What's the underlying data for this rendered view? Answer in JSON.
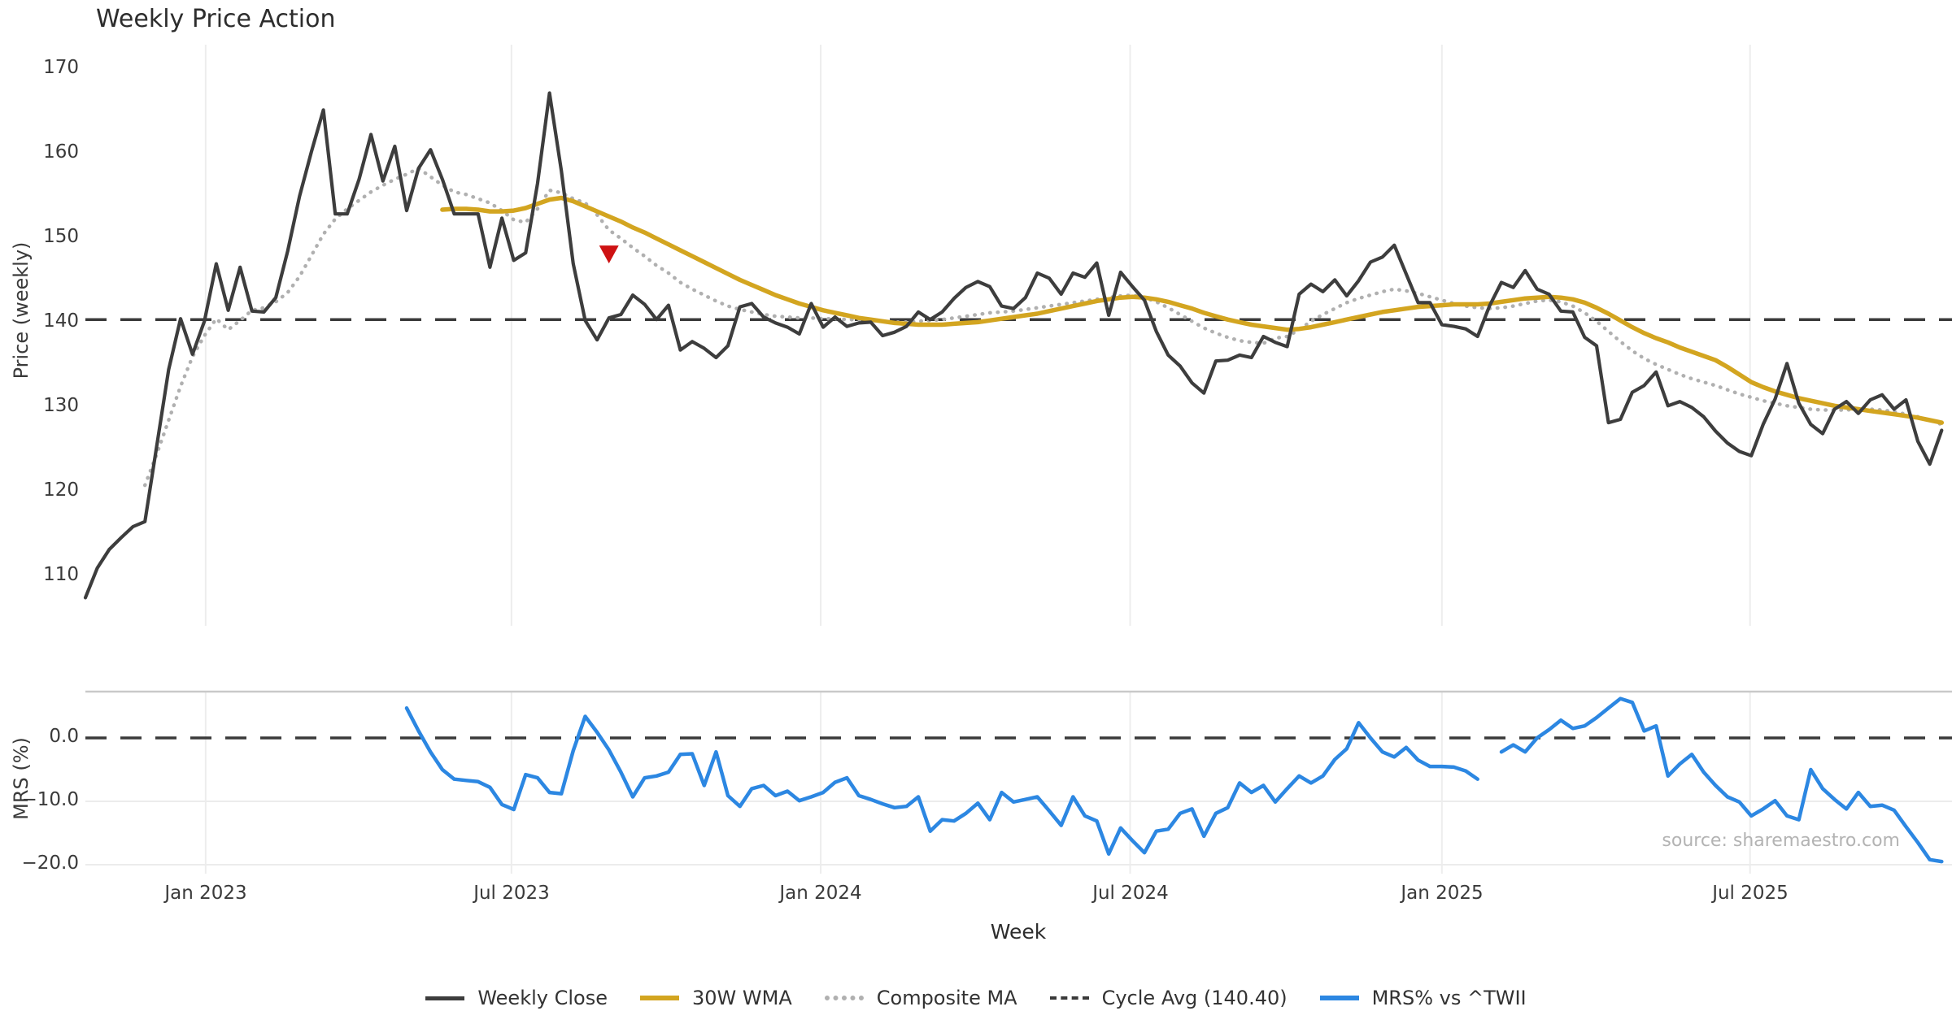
{
  "title": "Weekly Price Action",
  "source_note": "source: sharemaestro.com",
  "legend": {
    "items": [
      {
        "label": "Weekly Close",
        "color": "#3d3d3d",
        "style": "solid"
      },
      {
        "label": "30W WMA",
        "color": "#d3a520",
        "style": "solid"
      },
      {
        "label": "Composite MA",
        "color": "#b0b0b0",
        "style": "dotted"
      },
      {
        "label": "Cycle Avg (140.40)",
        "color": "#3a3a3a",
        "style": "dashed"
      },
      {
        "label": "MRS% vs ^TWII",
        "color": "#2c87e2",
        "style": "solid"
      }
    ]
  },
  "chart_data": [
    {
      "type": "line",
      "panel": "price",
      "title": "Weekly Price Action",
      "ylabel": "Price (weekly)",
      "ylim": [
        104,
        173
      ],
      "yticks": [
        170,
        160,
        150,
        140,
        130,
        120,
        110
      ],
      "grid": "vertical-only",
      "x_axis": {
        "label": "Week",
        "tick_weeks": [
          10.1,
          35.8,
          61.8,
          87.8,
          114.0,
          139.9
        ],
        "tick_labels": [
          "Jan 2023",
          "Jul 2023",
          "Jan 2024",
          "Jul 2024",
          "Jan 2025",
          "Jul 2025"
        ]
      },
      "cycle_avg": 140.4,
      "marker": {
        "name": "sell-signal",
        "shape": "triangle-down",
        "week": 44,
        "price": 148.2,
        "color": "#ce1213"
      },
      "series": [
        {
          "name": "Weekly Close",
          "color": "#3d3d3d",
          "style": "solid",
          "start_week": 0,
          "values": [
            107.5,
            111.0,
            113.2,
            114.6,
            115.9,
            116.5,
            125.5,
            134.5,
            140.5,
            136.3,
            140.2,
            147.0,
            141.5,
            146.6,
            141.4,
            141.3,
            143.0,
            148.5,
            155.0,
            160.3,
            165.2,
            152.9,
            152.9,
            157.0,
            162.3,
            156.8,
            160.9,
            153.3,
            158.3,
            160.5,
            157.0,
            152.9,
            152.9,
            152.9,
            146.6,
            152.4,
            147.4,
            148.3,
            156.5,
            167.2,
            158.0,
            147.0,
            140.3,
            138.0,
            140.6,
            141.0,
            143.3,
            142.2,
            140.4,
            142.1,
            136.8,
            137.8,
            137.0,
            135.9,
            137.3,
            141.9,
            142.3,
            140.7,
            140.0,
            139.5,
            138.7,
            142.3,
            139.5,
            140.7,
            139.6,
            140.0,
            140.1,
            138.5,
            138.9,
            139.6,
            141.3,
            140.4,
            141.3,
            142.9,
            144.2,
            144.9,
            144.3,
            142.0,
            141.7,
            143.0,
            145.9,
            145.3,
            143.4,
            145.9,
            145.4,
            147.1,
            140.9,
            146.0,
            144.3,
            142.7,
            139.0,
            136.2,
            134.9,
            132.9,
            131.7,
            135.5,
            135.6,
            136.2,
            135.9,
            138.4,
            137.7,
            137.2,
            143.4,
            144.6,
            143.7,
            145.1,
            143.2,
            145.0,
            147.2,
            147.8,
            149.2,
            145.8,
            142.4,
            142.4,
            139.8,
            139.6,
            139.3,
            138.4,
            142.0,
            144.8,
            144.2,
            146.2,
            144.0,
            143.4,
            141.4,
            141.3,
            138.3,
            137.3,
            128.2,
            128.6,
            131.8,
            132.6,
            134.2,
            130.2,
            130.7,
            130.0,
            128.9,
            127.2,
            125.8,
            124.8,
            124.3,
            128.0,
            131.0,
            135.2,
            130.5,
            128.0,
            126.9,
            129.8,
            130.7,
            129.3,
            130.9,
            131.5,
            129.8,
            130.9,
            126.0,
            123.3,
            127.3
          ]
        },
        {
          "name": "30W WMA",
          "color": "#d3a520",
          "style": "solid",
          "start_week": 30,
          "values": [
            153.4,
            153.5,
            153.5,
            153.4,
            153.2,
            153.2,
            153.3,
            153.6,
            154.1,
            154.6,
            154.8,
            154.4,
            153.8,
            153.2,
            152.6,
            152.0,
            151.3,
            150.7,
            150.0,
            149.3,
            148.6,
            147.9,
            147.2,
            146.5,
            145.8,
            145.1,
            144.5,
            143.9,
            143.3,
            142.8,
            142.3,
            141.9,
            141.5,
            141.2,
            140.9,
            140.6,
            140.4,
            140.2,
            140.0,
            139.9,
            139.8,
            139.8,
            139.8,
            139.9,
            140.0,
            140.1,
            140.3,
            140.5,
            140.7,
            140.9,
            141.1,
            141.4,
            141.7,
            142.0,
            142.3,
            142.6,
            142.8,
            143.0,
            143.1,
            143.0,
            142.8,
            142.5,
            142.1,
            141.7,
            141.2,
            140.8,
            140.4,
            140.1,
            139.8,
            139.6,
            139.4,
            139.2,
            139.3,
            139.5,
            139.8,
            140.1,
            140.4,
            140.7,
            141.0,
            141.3,
            141.5,
            141.7,
            141.9,
            142.0,
            142.1,
            142.2,
            142.2,
            142.2,
            142.3,
            142.5,
            142.7,
            142.9,
            143.0,
            143.1,
            143.0,
            142.8,
            142.4,
            141.8,
            141.1,
            140.3,
            139.5,
            138.8,
            138.2,
            137.7,
            137.1,
            136.6,
            136.1,
            135.6,
            134.8,
            133.9,
            133.0,
            132.4,
            131.9,
            131.5,
            131.1,
            130.8,
            130.5,
            130.2,
            130.0,
            129.8,
            129.6,
            129.4,
            129.2,
            129.0,
            128.8,
            128.5,
            128.2
          ]
        },
        {
          "name": "Composite MA",
          "color": "#b0b0b0",
          "style": "dotted",
          "start_week": 5,
          "values": [
            120.8,
            124.5,
            128.5,
            132.5,
            136.0,
            138.5,
            140.5,
            139.2,
            140.3,
            141.5,
            141.8,
            142.5,
            143.6,
            145.5,
            148.0,
            150.5,
            152.3,
            153.5,
            154.5,
            155.5,
            156.3,
            157.0,
            157.6,
            158.3,
            157.3,
            156.3,
            155.5,
            155.2,
            154.7,
            154.2,
            153.3,
            152.2,
            151.9,
            153.5,
            155.7,
            155.4,
            154.7,
            154.2,
            152.8,
            151.0,
            150.0,
            148.9,
            147.9,
            146.8,
            145.9,
            144.8,
            144.0,
            143.3,
            142.6,
            142.0,
            141.6,
            141.3,
            141.0,
            140.8,
            140.7,
            140.6,
            140.6,
            140.5,
            140.5,
            140.4,
            140.4,
            140.3,
            140.2,
            140.1,
            140.1,
            140.2,
            140.3,
            140.4,
            140.6,
            140.8,
            141.0,
            141.2,
            141.3,
            141.4,
            141.6,
            141.8,
            142.0,
            142.2,
            142.4,
            142.6,
            142.8,
            143.0,
            143.2,
            143.3,
            143.0,
            142.5,
            141.8,
            141.0,
            140.2,
            139.4,
            138.8,
            138.3,
            137.9,
            137.7,
            137.6,
            138.2,
            138.4,
            139.2,
            140.2,
            141.0,
            141.7,
            142.4,
            142.9,
            143.3,
            143.7,
            144.0,
            143.8,
            143.5,
            143.1,
            142.7,
            142.3,
            142.0,
            141.8,
            141.7,
            141.8,
            142.0,
            142.3,
            142.6,
            142.7,
            142.5,
            142.0,
            141.2,
            140.2,
            139.0,
            137.8,
            136.7,
            135.8,
            135.1,
            134.5,
            133.9,
            133.4,
            133.0,
            132.6,
            132.1,
            131.6,
            131.2,
            130.8,
            130.5,
            130.2,
            130.0,
            129.8,
            129.7,
            129.7,
            129.7,
            129.8,
            129.8,
            129.7,
            129.5,
            129.2,
            128.9,
            128.5,
            128.0
          ]
        },
        {
          "name": "Cycle Avg (140.40)",
          "color": "#3a3a3a",
          "style": "dashed",
          "constant": 140.4
        }
      ]
    },
    {
      "type": "line",
      "panel": "mrs",
      "ylabel": "MRS (%)",
      "ylim": [
        -22.5,
        7.5
      ],
      "yticks": [
        0,
        -10,
        -20
      ],
      "ytick_labels": [
        "0.0",
        "−10.0",
        "−20.0"
      ],
      "zero_line_style": "dashed",
      "series": [
        {
          "name": "MRS% vs ^TWII",
          "color": "#2c87e2",
          "style": "solid",
          "start_week": 27,
          "values": [
            4.7,
            1.1,
            -2.2,
            -5.0,
            -6.5,
            -6.7,
            -6.9,
            -7.8,
            -10.5,
            -11.3,
            -5.8,
            -6.3,
            -8.6,
            -8.8,
            -2.0,
            3.4,
            0.9,
            -1.9,
            -5.4,
            -9.3,
            -6.3,
            -6.0,
            -5.4,
            -2.6,
            -2.5,
            -7.5,
            -2.2,
            -9.1,
            -10.8,
            -8.0,
            -7.5,
            -9.1,
            -8.4,
            -9.9,
            -9.3,
            -8.6,
            -7.0,
            -6.3,
            -9.1,
            -9.7,
            -10.4,
            -11.0,
            -10.8,
            -9.3,
            -14.7,
            -12.9,
            -13.1,
            -11.9,
            -10.3,
            -12.9,
            -8.6,
            -10.1,
            -9.7,
            -9.3,
            -11.5,
            -13.8,
            -9.3,
            -12.3,
            -13.1,
            -18.3,
            -14.2,
            -16.2,
            -18.1,
            -14.7,
            -14.4,
            -11.9,
            -11.2,
            -15.5,
            -11.9,
            -11.0,
            -7.1,
            -8.6,
            -7.5,
            -10.1,
            -8.0,
            -6.0,
            -7.1,
            -6.0,
            -3.4,
            -1.7,
            2.4,
            0.0,
            -2.2,
            -3.0,
            -1.5,
            -3.5,
            -4.5,
            -4.5,
            -4.6,
            -5.2,
            -6.5,
            null,
            -2.2,
            -1.1,
            -2.2,
            0.0,
            1.3,
            2.8,
            1.5,
            1.9,
            3.2,
            4.7,
            6.2,
            5.6,
            1.1,
            1.9,
            -6.0,
            -4.1,
            -2.6,
            -5.4,
            -7.5,
            -9.3,
            -10.1,
            -12.3,
            -11.2,
            -9.9,
            -12.3,
            -12.9,
            -5.0,
            -8.0,
            -9.7,
            -11.2,
            -8.6,
            -10.8,
            -10.6,
            -11.4,
            -14.0,
            -16.5,
            -19.2,
            -19.5
          ]
        }
      ]
    }
  ]
}
